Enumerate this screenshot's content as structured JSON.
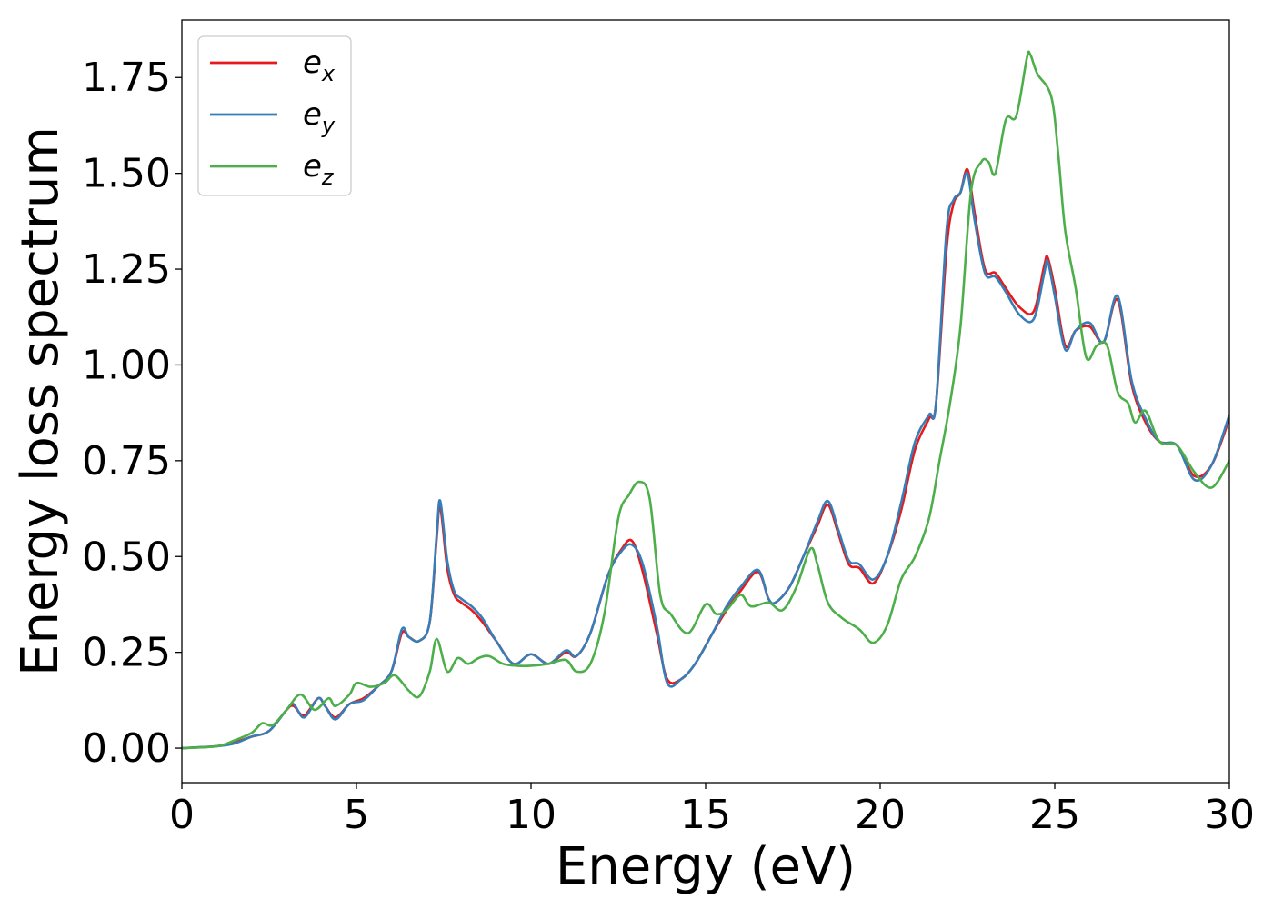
{
  "chart_data": {
    "type": "line",
    "title": "",
    "xlabel": "Energy (eV)",
    "ylabel": "Energy loss spectrum",
    "xlim": [
      0,
      30
    ],
    "ylim": [
      -0.09,
      1.9
    ],
    "xticks": [
      0,
      5,
      10,
      15,
      20,
      25,
      30
    ],
    "yticks": [
      "0.00",
      "0.25",
      "0.50",
      "0.75",
      "1.00",
      "1.25",
      "1.50",
      "1.75"
    ],
    "grid": false,
    "legend": {
      "position": "top-left"
    },
    "series": [
      {
        "name": "e",
        "subscript": "x",
        "color": "#e41a1c",
        "points": [
          [
            0,
            0
          ],
          [
            1,
            0.005
          ],
          [
            1.5,
            0.015
          ],
          [
            2,
            0.03
          ],
          [
            2.5,
            0.045
          ],
          [
            3,
            0.1
          ],
          [
            3.2,
            0.11
          ],
          [
            3.5,
            0.085
          ],
          [
            3.9,
            0.13
          ],
          [
            4.1,
            0.11
          ],
          [
            4.4,
            0.08
          ],
          [
            4.8,
            0.115
          ],
          [
            5.2,
            0.13
          ],
          [
            5.6,
            0.16
          ],
          [
            6,
            0.2
          ],
          [
            6.3,
            0.3
          ],
          [
            6.5,
            0.29
          ],
          [
            6.8,
            0.28
          ],
          [
            7.1,
            0.33
          ],
          [
            7.3,
            0.55
          ],
          [
            7.4,
            0.63
          ],
          [
            7.6,
            0.47
          ],
          [
            7.8,
            0.4
          ],
          [
            8,
            0.38
          ],
          [
            8.3,
            0.36
          ],
          [
            8.6,
            0.33
          ],
          [
            9,
            0.28
          ],
          [
            9.5,
            0.22
          ],
          [
            10,
            0.245
          ],
          [
            10.5,
            0.22
          ],
          [
            11,
            0.25
          ],
          [
            11.3,
            0.24
          ],
          [
            11.7,
            0.3
          ],
          [
            12.2,
            0.45
          ],
          [
            12.6,
            0.52
          ],
          [
            12.9,
            0.54
          ],
          [
            13.2,
            0.46
          ],
          [
            13.6,
            0.3
          ],
          [
            13.9,
            0.18
          ],
          [
            14.3,
            0.18
          ],
          [
            14.7,
            0.22
          ],
          [
            15.2,
            0.3
          ],
          [
            15.6,
            0.36
          ],
          [
            16,
            0.41
          ],
          [
            16.5,
            0.46
          ],
          [
            16.8,
            0.39
          ],
          [
            17,
            0.38
          ],
          [
            17.4,
            0.42
          ],
          [
            17.8,
            0.5
          ],
          [
            18.2,
            0.58
          ],
          [
            18.5,
            0.635
          ],
          [
            18.8,
            0.56
          ],
          [
            19.1,
            0.48
          ],
          [
            19.4,
            0.47
          ],
          [
            19.8,
            0.43
          ],
          [
            20.2,
            0.5
          ],
          [
            20.6,
            0.62
          ],
          [
            21,
            0.78
          ],
          [
            21.4,
            0.86
          ],
          [
            21.6,
            0.9
          ],
          [
            21.9,
            1.3
          ],
          [
            22.1,
            1.42
          ],
          [
            22.3,
            1.45
          ],
          [
            22.5,
            1.51
          ],
          [
            22.7,
            1.4
          ],
          [
            23,
            1.25
          ],
          [
            23.3,
            1.24
          ],
          [
            23.6,
            1.2
          ],
          [
            24,
            1.15
          ],
          [
            24.4,
            1.14
          ],
          [
            24.7,
            1.26
          ],
          [
            24.8,
            1.28
          ],
          [
            25,
            1.2
          ],
          [
            25.3,
            1.05
          ],
          [
            25.6,
            1.09
          ],
          [
            26,
            1.1
          ],
          [
            26.4,
            1.06
          ],
          [
            26.8,
            1.17
          ],
          [
            27.2,
            0.95
          ],
          [
            27.6,
            0.85
          ],
          [
            28,
            0.8
          ],
          [
            28.5,
            0.79
          ],
          [
            29,
            0.71
          ],
          [
            29.5,
            0.74
          ],
          [
            30,
            0.86
          ]
        ]
      },
      {
        "name": "e",
        "subscript": "y",
        "color": "#377eb8",
        "points": [
          [
            0,
            0
          ],
          [
            1,
            0.005
          ],
          [
            1.5,
            0.012
          ],
          [
            2,
            0.03
          ],
          [
            2.5,
            0.045
          ],
          [
            3,
            0.1
          ],
          [
            3.2,
            0.115
          ],
          [
            3.5,
            0.08
          ],
          [
            3.9,
            0.13
          ],
          [
            4.1,
            0.11
          ],
          [
            4.4,
            0.075
          ],
          [
            4.8,
            0.115
          ],
          [
            5.2,
            0.125
          ],
          [
            5.6,
            0.16
          ],
          [
            6,
            0.2
          ],
          [
            6.3,
            0.31
          ],
          [
            6.5,
            0.29
          ],
          [
            6.8,
            0.28
          ],
          [
            7.1,
            0.33
          ],
          [
            7.3,
            0.56
          ],
          [
            7.4,
            0.645
          ],
          [
            7.6,
            0.49
          ],
          [
            7.8,
            0.41
          ],
          [
            8,
            0.39
          ],
          [
            8.3,
            0.37
          ],
          [
            8.6,
            0.34
          ],
          [
            9,
            0.28
          ],
          [
            9.5,
            0.22
          ],
          [
            10,
            0.245
          ],
          [
            10.5,
            0.22
          ],
          [
            11,
            0.255
          ],
          [
            11.3,
            0.24
          ],
          [
            11.7,
            0.3
          ],
          [
            12.2,
            0.45
          ],
          [
            12.6,
            0.515
          ],
          [
            12.9,
            0.53
          ],
          [
            13.2,
            0.48
          ],
          [
            13.6,
            0.32
          ],
          [
            13.9,
            0.17
          ],
          [
            14.3,
            0.18
          ],
          [
            14.7,
            0.22
          ],
          [
            15.2,
            0.3
          ],
          [
            15.6,
            0.37
          ],
          [
            16,
            0.42
          ],
          [
            16.5,
            0.465
          ],
          [
            16.8,
            0.39
          ],
          [
            17,
            0.38
          ],
          [
            17.4,
            0.42
          ],
          [
            17.8,
            0.5
          ],
          [
            18.2,
            0.59
          ],
          [
            18.5,
            0.645
          ],
          [
            18.8,
            0.57
          ],
          [
            19.1,
            0.49
          ],
          [
            19.4,
            0.48
          ],
          [
            19.8,
            0.44
          ],
          [
            20.2,
            0.5
          ],
          [
            20.6,
            0.64
          ],
          [
            21,
            0.8
          ],
          [
            21.4,
            0.87
          ],
          [
            21.6,
            0.9
          ],
          [
            21.9,
            1.35
          ],
          [
            22.1,
            1.43
          ],
          [
            22.3,
            1.45
          ],
          [
            22.5,
            1.5
          ],
          [
            22.7,
            1.38
          ],
          [
            23,
            1.24
          ],
          [
            23.3,
            1.23
          ],
          [
            23.6,
            1.19
          ],
          [
            24,
            1.13
          ],
          [
            24.4,
            1.12
          ],
          [
            24.7,
            1.24
          ],
          [
            24.8,
            1.27
          ],
          [
            25,
            1.18
          ],
          [
            25.3,
            1.04
          ],
          [
            25.6,
            1.09
          ],
          [
            26,
            1.11
          ],
          [
            26.4,
            1.06
          ],
          [
            26.8,
            1.18
          ],
          [
            27.2,
            0.96
          ],
          [
            27.6,
            0.86
          ],
          [
            28,
            0.8
          ],
          [
            28.5,
            0.79
          ],
          [
            29,
            0.7
          ],
          [
            29.5,
            0.74
          ],
          [
            30,
            0.87
          ]
        ]
      },
      {
        "name": "e",
        "subscript": "z",
        "color": "#4daf4a",
        "points": [
          [
            0,
            0
          ],
          [
            1,
            0.005
          ],
          [
            1.5,
            0.02
          ],
          [
            2,
            0.04
          ],
          [
            2.3,
            0.065
          ],
          [
            2.6,
            0.06
          ],
          [
            3,
            0.1
          ],
          [
            3.4,
            0.14
          ],
          [
            3.8,
            0.1
          ],
          [
            4.2,
            0.13
          ],
          [
            4.4,
            0.11
          ],
          [
            4.8,
            0.14
          ],
          [
            5,
            0.17
          ],
          [
            5.4,
            0.16
          ],
          [
            5.8,
            0.17
          ],
          [
            6.1,
            0.19
          ],
          [
            6.5,
            0.15
          ],
          [
            6.8,
            0.135
          ],
          [
            7.1,
            0.2
          ],
          [
            7.3,
            0.285
          ],
          [
            7.6,
            0.2
          ],
          [
            7.9,
            0.235
          ],
          [
            8.2,
            0.22
          ],
          [
            8.5,
            0.235
          ],
          [
            8.8,
            0.24
          ],
          [
            9.2,
            0.22
          ],
          [
            9.6,
            0.215
          ],
          [
            10,
            0.215
          ],
          [
            10.5,
            0.22
          ],
          [
            11,
            0.23
          ],
          [
            11.3,
            0.2
          ],
          [
            11.7,
            0.22
          ],
          [
            12.1,
            0.35
          ],
          [
            12.5,
            0.6
          ],
          [
            12.8,
            0.66
          ],
          [
            13.1,
            0.695
          ],
          [
            13.4,
            0.65
          ],
          [
            13.7,
            0.4
          ],
          [
            14,
            0.35
          ],
          [
            14.5,
            0.3
          ],
          [
            15,
            0.375
          ],
          [
            15.3,
            0.35
          ],
          [
            15.6,
            0.36
          ],
          [
            16,
            0.4
          ],
          [
            16.3,
            0.37
          ],
          [
            16.8,
            0.38
          ],
          [
            17.2,
            0.36
          ],
          [
            17.6,
            0.42
          ],
          [
            18,
            0.52
          ],
          [
            18.2,
            0.48
          ],
          [
            18.5,
            0.38
          ],
          [
            18.9,
            0.34
          ],
          [
            19.4,
            0.31
          ],
          [
            19.8,
            0.275
          ],
          [
            20.2,
            0.32
          ],
          [
            20.6,
            0.44
          ],
          [
            21,
            0.5
          ],
          [
            21.4,
            0.6
          ],
          [
            21.7,
            0.75
          ],
          [
            22,
            0.9
          ],
          [
            22.3,
            1.1
          ],
          [
            22.6,
            1.45
          ],
          [
            22.9,
            1.53
          ],
          [
            23.1,
            1.53
          ],
          [
            23.3,
            1.5
          ],
          [
            23.6,
            1.64
          ],
          [
            23.9,
            1.65
          ],
          [
            24.2,
            1.8
          ],
          [
            24.3,
            1.81
          ],
          [
            24.5,
            1.76
          ],
          [
            24.9,
            1.7
          ],
          [
            25.1,
            1.55
          ],
          [
            25.3,
            1.35
          ],
          [
            25.6,
            1.2
          ],
          [
            25.9,
            1.02
          ],
          [
            26.2,
            1.05
          ],
          [
            26.5,
            1.05
          ],
          [
            26.8,
            0.93
          ],
          [
            27.1,
            0.9
          ],
          [
            27.3,
            0.85
          ],
          [
            27.6,
            0.88
          ],
          [
            28,
            0.8
          ],
          [
            28.5,
            0.79
          ],
          [
            29,
            0.72
          ],
          [
            29.5,
            0.68
          ],
          [
            30,
            0.75
          ]
        ]
      }
    ]
  }
}
